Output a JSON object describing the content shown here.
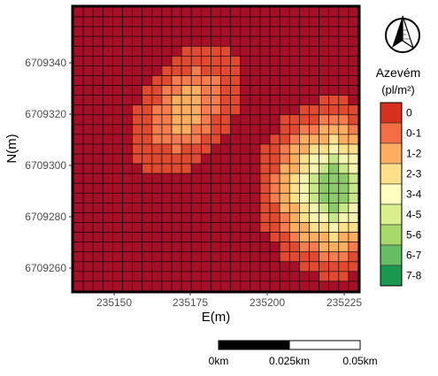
{
  "map": {
    "x_ticks": [
      "235150",
      "235175",
      "235200",
      "235225"
    ],
    "y_ticks": [
      "6709340",
      "6709320",
      "6709300",
      "6709280",
      "6709260"
    ],
    "x_label": "E(m)",
    "y_label": "N(m)",
    "grid_cols": 29,
    "grid_rows": 29,
    "hotspots": [
      {
        "name": "north-west patch",
        "center_col": 11,
        "center_row": 10,
        "peak_value": 1.6
      },
      {
        "name": "south-east patch",
        "center_col": 26,
        "center_row": 18,
        "peak_value": 5.6
      }
    ]
  },
  "legend": {
    "title": "Azevém",
    "unit": "(pl/m²)",
    "classes": [
      {
        "label": "0",
        "color": "#d7301f"
      },
      {
        "label": "0-1",
        "color": "#f46d43"
      },
      {
        "label": "1-2",
        "color": "#fdae61"
      },
      {
        "label": "2-3",
        "color": "#fee08b"
      },
      {
        "label": "3-4",
        "color": "#ffffbf"
      },
      {
        "label": "4-5",
        "color": "#d9ef8b"
      },
      {
        "label": "5-6",
        "color": "#a6d96a"
      },
      {
        "label": "6-7",
        "color": "#66bd63"
      },
      {
        "label": "7-8",
        "color": "#1a9850"
      }
    ]
  },
  "grid_colors": [
    "#a50f27",
    "#e04a31",
    "#f57c4e",
    "#fdae61",
    "#fee08b",
    "#f4f5b0",
    "#c7e78a",
    "#8ccb6c"
  ],
  "scale_bar": {
    "labels": [
      "0km",
      "0.025km",
      "0.05km"
    ]
  }
}
